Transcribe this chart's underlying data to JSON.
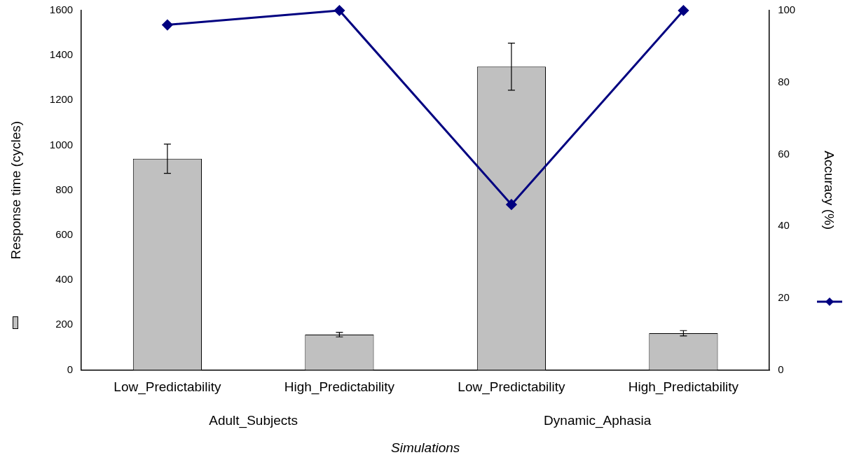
{
  "chart_data": {
    "type": "bar",
    "categories": [
      "Low_Predictability",
      "High_Predictability",
      "Low_Predictability",
      "High_Predictability"
    ],
    "xlabel": "Simulations",
    "ylabel": "Response time (cycles)",
    "y2label": "Accuracy (%)",
    "annotations": [
      "Adult_Subjects",
      "Dynamic_Aphasia"
    ],
    "series": [
      {
        "color": "#c0c0c0",
        "values": [
          940,
          157,
          1350,
          163
        ],
        "errors": [
          65,
          10,
          105,
          12
        ]
      },
      {
        "type": "line",
        "axis": "y2",
        "color": "#000080",
        "marker": "diamond",
        "values": [
          96,
          100,
          46,
          100
        ]
      }
    ],
    "ylim": [
      0,
      1600
    ],
    "yticks": [
      0,
      200,
      400,
      600,
      800,
      1000,
      1200,
      1400,
      1600
    ],
    "y2lim": [
      0,
      100
    ],
    "y2ticks": [
      0,
      20,
      40,
      60,
      80,
      100
    ],
    "grid": false
  }
}
